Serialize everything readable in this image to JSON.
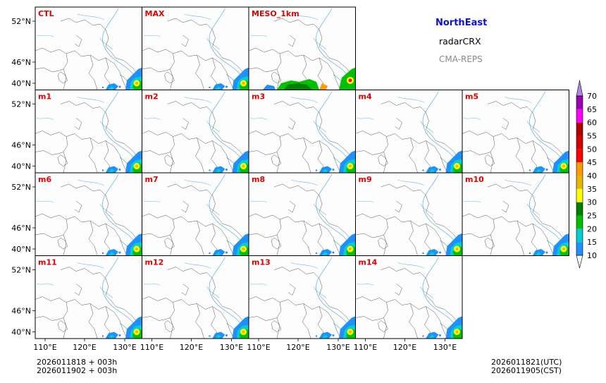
{
  "header": {
    "region": "NorthEast",
    "product": "radarCRX",
    "system": "CMA-REPS"
  },
  "panels": [
    {
      "label": "CTL",
      "row": 0,
      "col": 0
    },
    {
      "label": "MAX",
      "row": 0,
      "col": 1
    },
    {
      "label": "MESO_1km",
      "row": 0,
      "col": 2
    },
    {
      "label": "m1",
      "row": 1,
      "col": 0
    },
    {
      "label": "m2",
      "row": 1,
      "col": 1
    },
    {
      "label": "m3",
      "row": 1,
      "col": 2
    },
    {
      "label": "m4",
      "row": 1,
      "col": 3
    },
    {
      "label": "m5",
      "row": 1,
      "col": 4
    },
    {
      "label": "m6",
      "row": 2,
      "col": 0
    },
    {
      "label": "m7",
      "row": 2,
      "col": 1
    },
    {
      "label": "m8",
      "row": 2,
      "col": 2
    },
    {
      "label": "m9",
      "row": 2,
      "col": 3
    },
    {
      "label": "m10",
      "row": 2,
      "col": 4
    },
    {
      "label": "m11",
      "row": 3,
      "col": 0
    },
    {
      "label": "m12",
      "row": 3,
      "col": 1
    },
    {
      "label": "m13",
      "row": 3,
      "col": 2
    },
    {
      "label": "m14",
      "row": 3,
      "col": 3
    }
  ],
  "lat_ticks": [
    "52°N",
    "46°N",
    "40°N"
  ],
  "lon_ticks": [
    "110°E",
    "120°E",
    "130°E"
  ],
  "colorbar": {
    "levels": [
      "10",
      "15",
      "20",
      "25",
      "30",
      "35",
      "40",
      "45",
      "50",
      "55",
      "60",
      "65",
      "70"
    ],
    "colors": [
      "#1e90ff",
      "#00ced1",
      "#00c000",
      "#008000",
      "#ffff00",
      "#e6b800",
      "#ff9900",
      "#ff0000",
      "#d40000",
      "#b00000",
      "#ff00ff",
      "#9b00b4"
    ],
    "over_color": "#aa88dd",
    "under_color": "#ffffff"
  },
  "footer": {
    "init_utc": "2026011818  +  003h",
    "init_cst": "2026011902  +  003h",
    "valid_utc": "2026011821(UTC)",
    "valid_cst": "2026011905(CST)"
  }
}
